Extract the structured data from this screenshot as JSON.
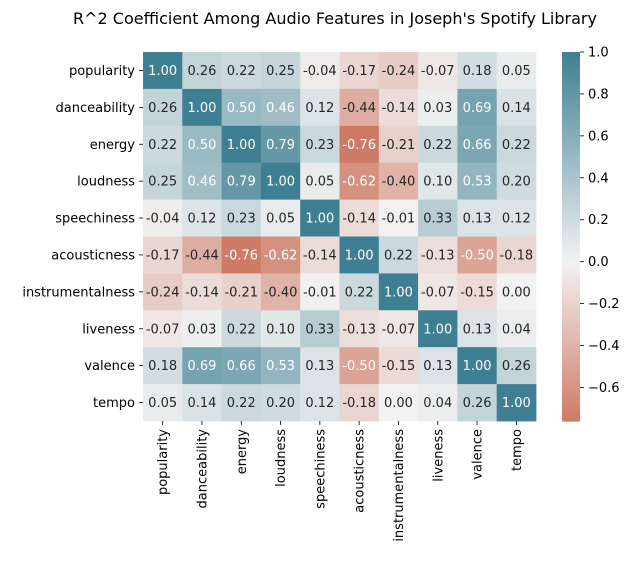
{
  "chart_data": {
    "type": "heatmap",
    "title": "R^2 Coefficient Among Audio Features in Joseph's  Spotify Library",
    "row_labels": [
      "popularity",
      "danceability",
      "energy",
      "loudness",
      "speechiness",
      "acousticness",
      "instrumentalness",
      "liveness",
      "valence",
      "tempo"
    ],
    "col_labels": [
      "popularity",
      "danceability",
      "energy",
      "loudness",
      "speechiness",
      "acousticness",
      "instrumentalness",
      "liveness",
      "valence",
      "tempo"
    ],
    "values": [
      [
        1.0,
        0.26,
        0.22,
        0.25,
        -0.04,
        -0.17,
        -0.24,
        -0.07,
        0.18,
        0.05
      ],
      [
        0.26,
        1.0,
        0.5,
        0.46,
        0.12,
        -0.44,
        -0.14,
        0.03,
        0.69,
        0.14
      ],
      [
        0.22,
        0.5,
        1.0,
        0.79,
        0.23,
        -0.76,
        -0.21,
        0.22,
        0.66,
        0.22
      ],
      [
        0.25,
        0.46,
        0.79,
        1.0,
        0.05,
        -0.62,
        -0.4,
        0.1,
        0.53,
        0.2
      ],
      [
        -0.04,
        0.12,
        0.23,
        0.05,
        1.0,
        -0.14,
        -0.01,
        0.33,
        0.13,
        0.12
      ],
      [
        -0.17,
        -0.44,
        -0.76,
        -0.62,
        -0.14,
        1.0,
        0.22,
        -0.13,
        -0.5,
        -0.18
      ],
      [
        -0.24,
        -0.14,
        -0.21,
        -0.4,
        -0.01,
        0.22,
        1.0,
        -0.07,
        -0.15,
        0.0
      ],
      [
        -0.07,
        0.03,
        0.22,
        0.1,
        0.33,
        -0.13,
        -0.07,
        1.0,
        0.13,
        0.04
      ],
      [
        0.18,
        0.69,
        0.66,
        0.53,
        0.13,
        -0.5,
        -0.15,
        0.13,
        1.0,
        0.26
      ],
      [
        0.05,
        0.14,
        0.22,
        0.2,
        0.12,
        -0.18,
        0.0,
        0.04,
        0.26,
        1.0
      ]
    ],
    "value_format": "2 decimals",
    "colorbar": {
      "min": -0.76,
      "max": 1.0,
      "ticks": [
        "1.0",
        "0.8",
        "0.6",
        "0.4",
        "0.2",
        "0.0",
        "−0.2",
        "−0.4",
        "−0.6"
      ],
      "tick_values": [
        1.0,
        0.8,
        0.6,
        0.4,
        0.2,
        0.0,
        -0.2,
        -0.4,
        -0.6
      ],
      "colors": {
        "negative": "#c3553a",
        "center": "#f2f2f2",
        "positive": "#3f7f93"
      }
    },
    "grid": false
  }
}
